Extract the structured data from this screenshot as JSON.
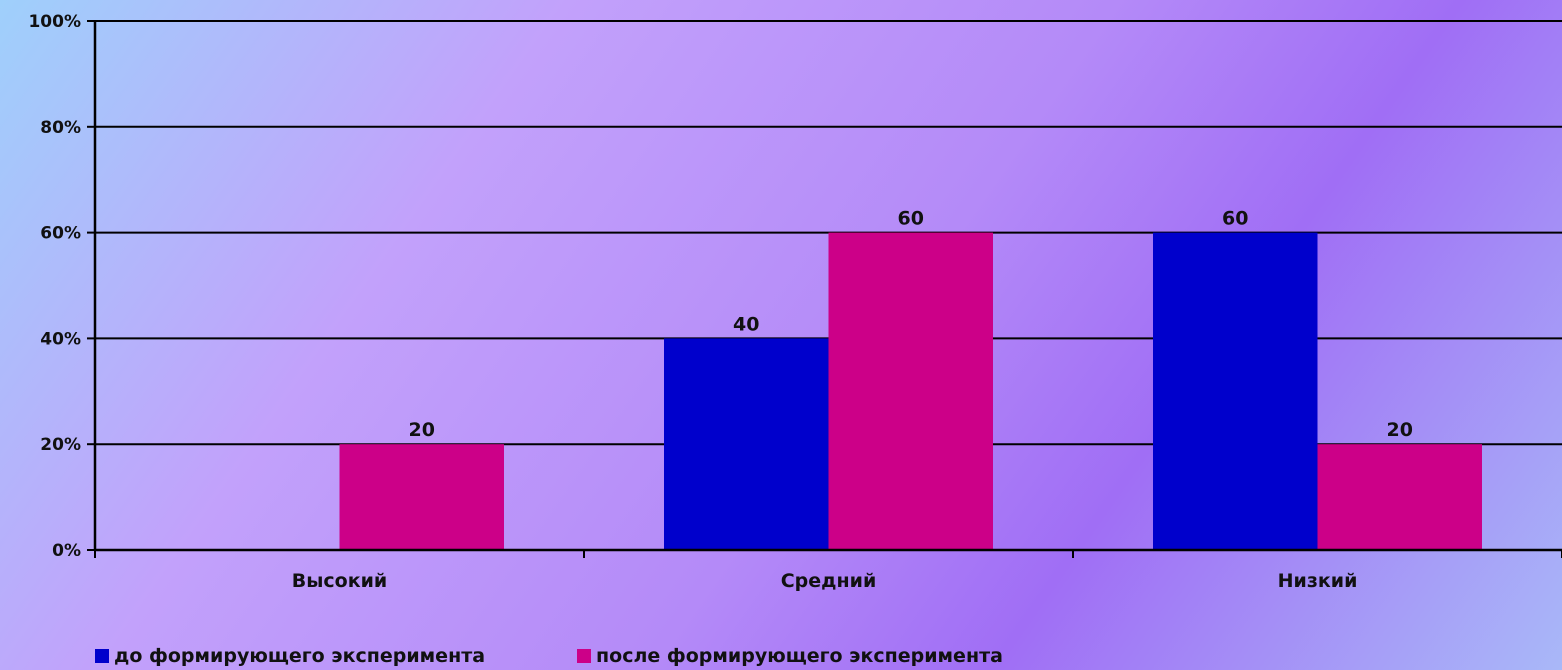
{
  "chart_data": {
    "type": "bar",
    "categories": [
      "Высокий",
      "Средний",
      "Низкий"
    ],
    "series": [
      {
        "name": "до формирующего эксперимента",
        "values": [
          0,
          40,
          60
        ],
        "color": "#0000cc"
      },
      {
        "name": "после формирующего эксперимента",
        "values": [
          20,
          60,
          20
        ],
        "color": "#cc0088"
      }
    ],
    "ylim": [
      0,
      100
    ],
    "yticks": [
      "0%",
      "20%",
      "40%",
      "60%",
      "80%",
      "100%"
    ],
    "grid": true,
    "legend": "bottom-left"
  }
}
